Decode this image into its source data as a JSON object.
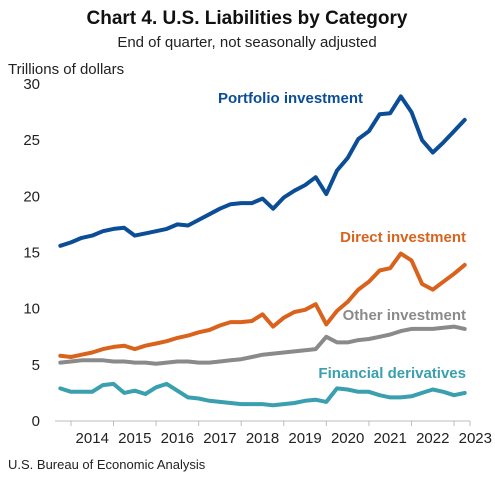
{
  "chart_data": {
    "type": "line",
    "title": "Chart 4. U.S. Liabilities by Category",
    "subtitle": "End of quarter, not seasonally adjusted",
    "ylabel": "Trillions of dollars",
    "source": "U.S. Bureau of Economic Analysis",
    "ylim": [
      0,
      30
    ],
    "yticks": [
      0,
      5,
      10,
      15,
      20,
      25,
      30
    ],
    "xlim": [
      2013.625,
      2023.375
    ],
    "xticks": [
      "2014",
      "2015",
      "2016",
      "2017",
      "2018",
      "2019",
      "2020",
      "2021",
      "2022",
      "2023"
    ],
    "grid": false,
    "x": [
      2013.75,
      2014.0,
      2014.25,
      2014.5,
      2014.75,
      2015.0,
      2015.25,
      2015.5,
      2015.75,
      2016.0,
      2016.25,
      2016.5,
      2016.75,
      2017.0,
      2017.25,
      2017.5,
      2017.75,
      2018.0,
      2018.25,
      2018.5,
      2018.75,
      2019.0,
      2019.25,
      2019.5,
      2019.75,
      2020.0,
      2020.25,
      2020.5,
      2020.75,
      2021.0,
      2021.25,
      2021.5,
      2021.75,
      2022.0,
      2022.25,
      2022.5,
      2022.75,
      2023.0,
      2023.25
    ],
    "series": [
      {
        "name": "Portfolio investment",
        "color": "#0b4d97",
        "values": [
          15.6,
          15.9,
          16.3,
          16.5,
          16.9,
          17.1,
          17.2,
          16.5,
          16.7,
          16.9,
          17.1,
          17.5,
          17.4,
          17.9,
          18.4,
          18.9,
          19.3,
          19.4,
          19.4,
          19.8,
          18.9,
          19.9,
          20.5,
          21.0,
          21.7,
          20.2,
          22.3,
          23.4,
          25.1,
          25.8,
          27.3,
          27.4,
          28.9,
          27.5,
          25.0,
          23.9,
          24.8,
          25.8,
          26.8
        ]
      },
      {
        "name": "Direct investment",
        "color": "#d9631d",
        "values": [
          5.8,
          5.7,
          5.9,
          6.1,
          6.4,
          6.6,
          6.7,
          6.4,
          6.7,
          6.9,
          7.1,
          7.4,
          7.6,
          7.9,
          8.1,
          8.5,
          8.8,
          8.8,
          8.9,
          9.5,
          8.4,
          9.2,
          9.7,
          9.9,
          10.4,
          8.6,
          9.8,
          10.6,
          11.7,
          12.4,
          13.4,
          13.6,
          14.9,
          14.3,
          12.2,
          11.7,
          12.4,
          13.1,
          13.9
        ]
      },
      {
        "name": "Other investment",
        "color": "#8a8a8a",
        "values": [
          5.2,
          5.3,
          5.4,
          5.4,
          5.4,
          5.3,
          5.3,
          5.2,
          5.2,
          5.1,
          5.2,
          5.3,
          5.3,
          5.2,
          5.2,
          5.3,
          5.4,
          5.5,
          5.7,
          5.9,
          6.0,
          6.1,
          6.2,
          6.3,
          6.4,
          7.5,
          7.0,
          7.0,
          7.2,
          7.3,
          7.5,
          7.7,
          8.0,
          8.2,
          8.2,
          8.2,
          8.3,
          8.4,
          8.2
        ]
      },
      {
        "name": "Financial derivatives",
        "color": "#3a9fae",
        "values": [
          2.9,
          2.6,
          2.6,
          2.6,
          3.2,
          3.3,
          2.5,
          2.7,
          2.4,
          3.0,
          3.3,
          2.7,
          2.1,
          2.0,
          1.8,
          1.7,
          1.6,
          1.5,
          1.5,
          1.5,
          1.4,
          1.5,
          1.6,
          1.8,
          1.9,
          1.7,
          2.9,
          2.8,
          2.6,
          2.6,
          2.3,
          2.1,
          2.1,
          2.2,
          2.5,
          2.8,
          2.6,
          2.3,
          2.5
        ]
      }
    ]
  }
}
